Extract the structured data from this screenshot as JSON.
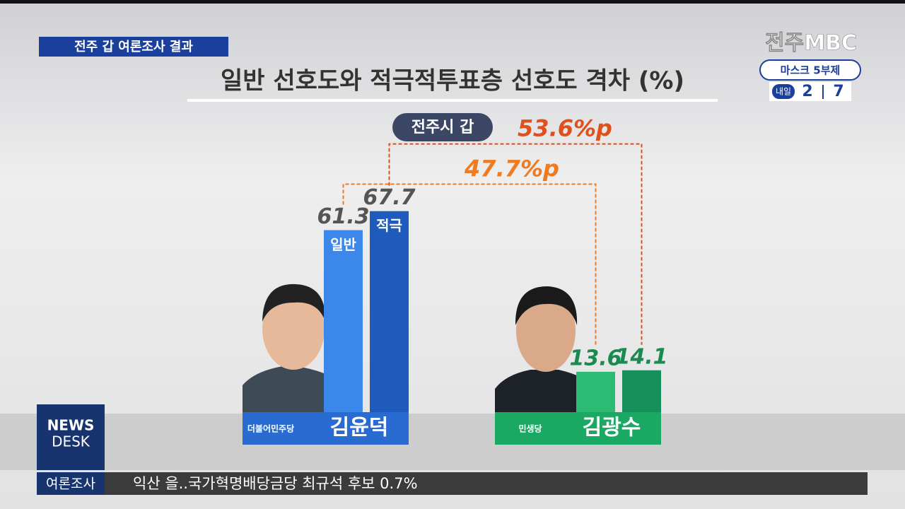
{
  "header": {
    "tag": "전주 갑 여론조사 결과"
  },
  "logo": {
    "station": "전주MBC",
    "notice": "마스크 5부제",
    "tomorrow": "내일",
    "plates": [
      "2",
      "7"
    ]
  },
  "news_desk": {
    "line1": "NEWS",
    "line2": "DESK"
  },
  "ticker": {
    "label": "여론조사",
    "text": "익산 을..국가혁명배당금당 최규석 후보 0.7%"
  },
  "chart_data": {
    "type": "bar",
    "title": "일반 선호도와 적극적투표층 선호도 격차 (%)",
    "subtitle": "전주시 갑",
    "categories": [
      "김윤덕",
      "김광수"
    ],
    "parties": [
      "더불어민주당",
      "민생당"
    ],
    "series": [
      {
        "name": "일반",
        "colors": [
          "#3b87ea",
          "#2dbb74"
        ],
        "values": [
          61.3,
          13.6
        ]
      },
      {
        "name": "적극",
        "colors": [
          "#1f5bbd",
          "#15905a"
        ],
        "values": [
          67.7,
          14.1
        ]
      }
    ],
    "annotations": [
      {
        "value": 47.7,
        "label": "47.7%p"
      },
      {
        "value": 53.6,
        "label": "53.6%p"
      }
    ]
  }
}
